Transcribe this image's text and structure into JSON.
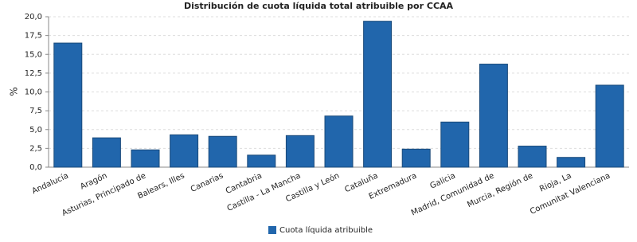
{
  "chart_data": {
    "type": "bar",
    "title": "Distribución de cuota líquida total atribuible por CCAA",
    "y_label": "%",
    "categories": [
      "Andalucía",
      "Aragón",
      "Asturias, Principado de",
      "Balears, Illes",
      "Canarias",
      "Cantabria",
      "Castilla - La Mancha",
      "Castilla y León",
      "Cataluña",
      "Extremadura",
      "Galicia",
      "Madrid, Comunidad de",
      "Murcia, Región de",
      "Rioja, La",
      "Comunitat Valenciana"
    ],
    "series": [
      {
        "name": "Cuota líquida atribuible",
        "color": "#2166ac",
        "values": [
          16.5,
          3.9,
          2.3,
          4.3,
          4.1,
          1.6,
          4.2,
          6.8,
          19.4,
          2.4,
          6.0,
          13.7,
          2.8,
          1.3,
          10.9
        ]
      }
    ],
    "ylim": [
      0,
      20
    ],
    "yticks": [
      {
        "value": 0,
        "label": "0,0"
      },
      {
        "value": 2.5,
        "label": "2,5"
      },
      {
        "value": 5,
        "label": "5,0"
      },
      {
        "value": 7.5,
        "label": "7,5"
      },
      {
        "value": 10,
        "label": "10,0"
      },
      {
        "value": 12.5,
        "label": "12,5"
      },
      {
        "value": 15,
        "label": "15,0"
      },
      {
        "value": 17.5,
        "label": "17,5"
      },
      {
        "value": 20,
        "label": "20,0"
      }
    ],
    "grid": true,
    "legend": "bottom"
  }
}
